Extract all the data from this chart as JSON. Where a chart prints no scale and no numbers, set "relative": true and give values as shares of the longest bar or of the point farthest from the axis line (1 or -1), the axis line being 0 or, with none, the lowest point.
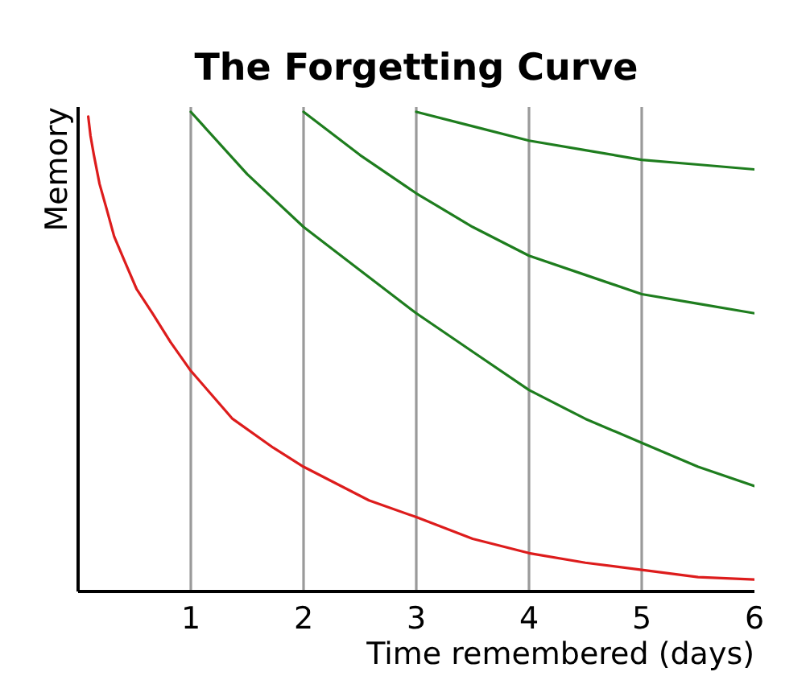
{
  "chart_data": {
    "type": "line",
    "title": "The Forgetting Curve",
    "xlabel": "Time remembered (days)",
    "ylabel": "Memory",
    "relative": true,
    "xlim": [
      0,
      6
    ],
    "xticks": [
      1,
      2,
      3,
      4,
      5,
      6
    ],
    "grid": "x",
    "line_style": "solid",
    "series": [
      {
        "color": "#dd1c1c",
        "x": [
          0.09,
          0.11,
          0.14,
          0.19,
          0.25,
          0.32,
          0.41,
          0.52,
          0.66,
          0.82,
          1,
          1.37,
          1.73,
          2,
          2.58,
          3,
          3.5,
          4,
          4.5,
          5,
          5.5,
          6
        ],
        "values": [
          0.99,
          0.95,
          0.91,
          0.85,
          0.8,
          0.74,
          0.69,
          0.63,
          0.58,
          0.52,
          0.46,
          0.36,
          0.3,
          0.26,
          0.19,
          0.155,
          0.11,
          0.08,
          0.06,
          0.045,
          0.03,
          0.025
        ]
      },
      {
        "color": "#1e7d1e",
        "x": [
          1,
          1.5,
          2,
          2.5,
          3,
          3.5,
          4,
          4.5,
          5,
          5.5,
          6
        ],
        "values": [
          1,
          0.87,
          0.76,
          0.67,
          0.58,
          0.5,
          0.42,
          0.36,
          0.31,
          0.26,
          0.22
        ]
      },
      {
        "color": "#1e7d1e",
        "x": [
          2,
          2.5,
          3,
          3.5,
          4,
          4.5,
          5,
          5.5,
          6
        ],
        "values": [
          1,
          0.91,
          0.83,
          0.76,
          0.7,
          0.66,
          0.62,
          0.6,
          0.58
        ]
      },
      {
        "color": "#1e7d1e",
        "x": [
          3,
          3.5,
          4,
          4.5,
          5,
          5.5,
          6
        ],
        "values": [
          1,
          0.97,
          0.94,
          0.92,
          0.9,
          0.89,
          0.88
        ]
      }
    ]
  }
}
